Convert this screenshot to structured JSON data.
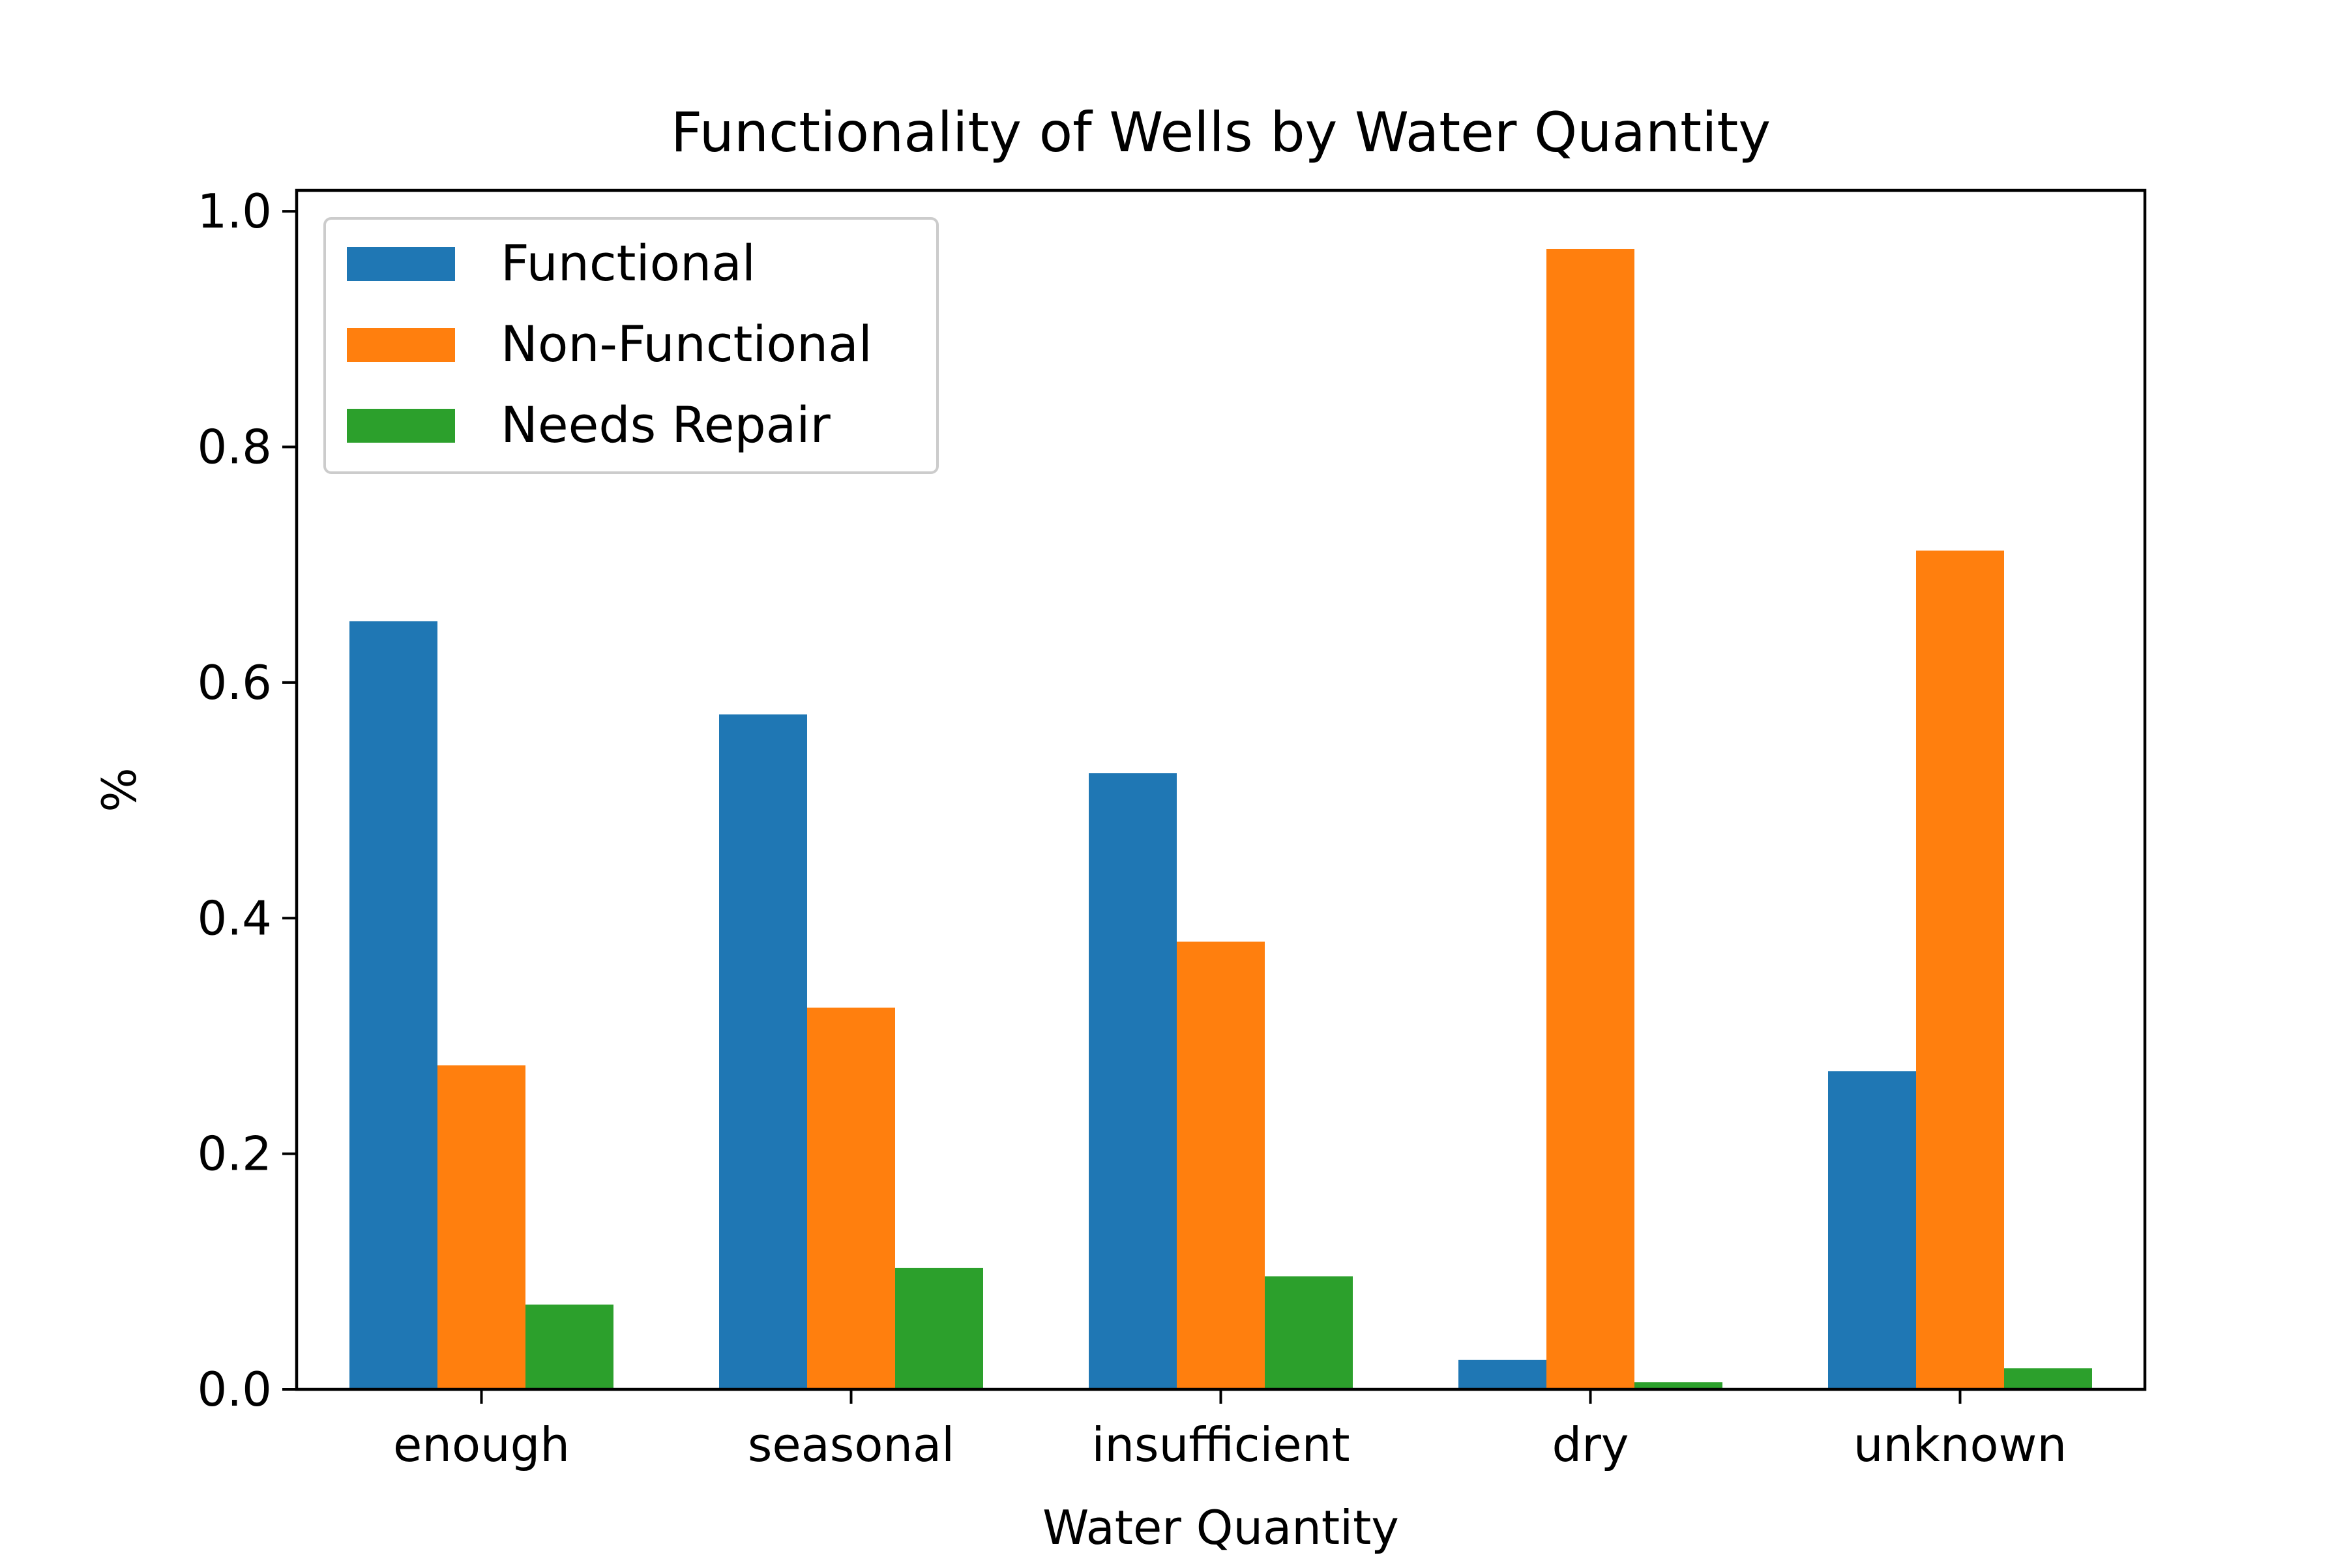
{
  "chart_data": {
    "type": "bar",
    "title": "Functionality of Wells by Water Quantity",
    "xlabel": "Water Quantity",
    "ylabel": "%",
    "categories": [
      "enough",
      "seasonal",
      "insufficient",
      "dry",
      "unknown"
    ],
    "series": [
      {
        "name": "Functional",
        "color": "#1f77b4",
        "values": [
          0.652,
          0.573,
          0.523,
          0.025,
          0.27
        ]
      },
      {
        "name": "Non-Functional",
        "color": "#ff7f0e",
        "values": [
          0.275,
          0.324,
          0.38,
          0.968,
          0.712
        ]
      },
      {
        "name": "Needs Repair",
        "color": "#2ca02c",
        "values": [
          0.072,
          0.103,
          0.096,
          0.006,
          0.018
        ]
      }
    ],
    "ylim": [
      0,
      1.0178
    ],
    "yticks": [
      0.0,
      0.2,
      0.4,
      0.6,
      0.8,
      1.0
    ],
    "ytick_labels": [
      "0.0",
      "0.2",
      "0.4",
      "0.6",
      "0.8",
      "1.0"
    ],
    "legend_position": "top-left",
    "grid": false
  }
}
